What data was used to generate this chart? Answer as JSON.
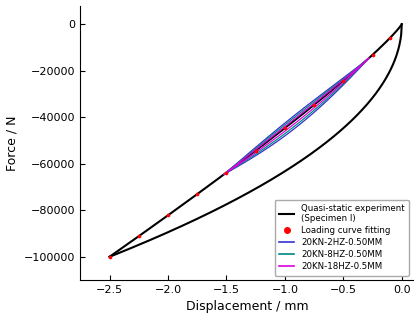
{
  "title": "",
  "xlabel": "Displacement / mm",
  "ylabel": "Force / N",
  "xlim": [
    -2.75,
    0.1
  ],
  "ylim": [
    -110000,
    8000
  ],
  "xticks": [
    -2.5,
    -2.0,
    -1.5,
    -1.0,
    -0.5,
    0.0
  ],
  "yticks": [
    0,
    -20000,
    -40000,
    -60000,
    -80000,
    -100000
  ],
  "quasi_static_color": "#000000",
  "fitting_color": "#ff0000",
  "loop_2hz_color": "#3333cc",
  "loop_8hz_color": "#008888",
  "loop_18hz_color": "#dd00dd",
  "legend_labels": [
    "Quasi-static experiment\n(Specimen I)",
    "Loading curve fitting",
    "20KN-2HZ-0.50MM",
    "20KN-8HZ-0.50MM",
    "20KN-18HZ-0.5MM"
  ],
  "background_color": "#ffffff",
  "figsize": [
    4.19,
    3.19
  ],
  "dpi": 100
}
